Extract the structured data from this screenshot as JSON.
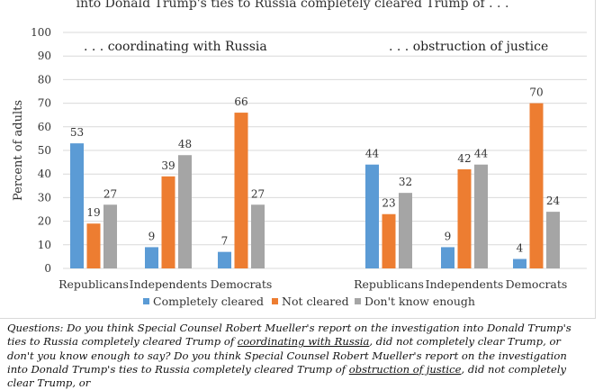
{
  "title": "into Donald Trump's ties to Russia completely cleared Trump of  . . .",
  "panel_labels": [
    ". . . coordinating with Russia",
    ". . . obstruction of justice"
  ],
  "colors": {
    "completely_cleared": "#5b9bd5",
    "not_cleared": "#ed7d31",
    "dont_know": "#a5a5a5",
    "gridline": "#d9d9d9"
  },
  "chart_data": {
    "type": "bar",
    "ylabel": "Percent of adults",
    "ylim": [
      0,
      100
    ],
    "yticks": [
      0,
      10,
      20,
      30,
      40,
      50,
      60,
      70,
      80,
      90,
      100
    ],
    "grid": true,
    "legend_position": "bottom",
    "series_names": [
      "Completely cleared",
      "Not cleared",
      "Don't know enough"
    ],
    "panels": [
      {
        "label": ". . . coordinating with Russia",
        "categories": [
          "Republicans",
          "Independents",
          "Democrats"
        ],
        "series": [
          {
            "name": "Completely cleared",
            "values": [
              53,
              9,
              7
            ]
          },
          {
            "name": "Not cleared",
            "values": [
              19,
              39,
              66
            ]
          },
          {
            "name": "Don't know enough",
            "values": [
              27,
              48,
              27
            ]
          }
        ]
      },
      {
        "label": ". . . obstruction of justice",
        "categories": [
          "Republicans",
          "Independents",
          "Democrats"
        ],
        "series": [
          {
            "name": "Completely cleared",
            "values": [
              44,
              9,
              4
            ]
          },
          {
            "name": "Not cleared",
            "values": [
              23,
              42,
              70
            ]
          },
          {
            "name": "Don't know enough",
            "values": [
              32,
              44,
              24
            ]
          }
        ]
      }
    ]
  },
  "questions": {
    "p1": "Questions: Do you think Special Counsel Robert Mueller's report on the investigation into Donald Trump's ties to Russia completely cleared Trump of ",
    "u1": "coordinating with Russia",
    "p2": ", did not completely clear Trump, or don't you know enough to say? Do you think Special Counsel Robert Mueller's report on the investigation into Donald Trump's ties to Russia completely cleared Trump of ",
    "u2": "obstruction of justice",
    "p3": ", did not completely clear Trump, or"
  }
}
